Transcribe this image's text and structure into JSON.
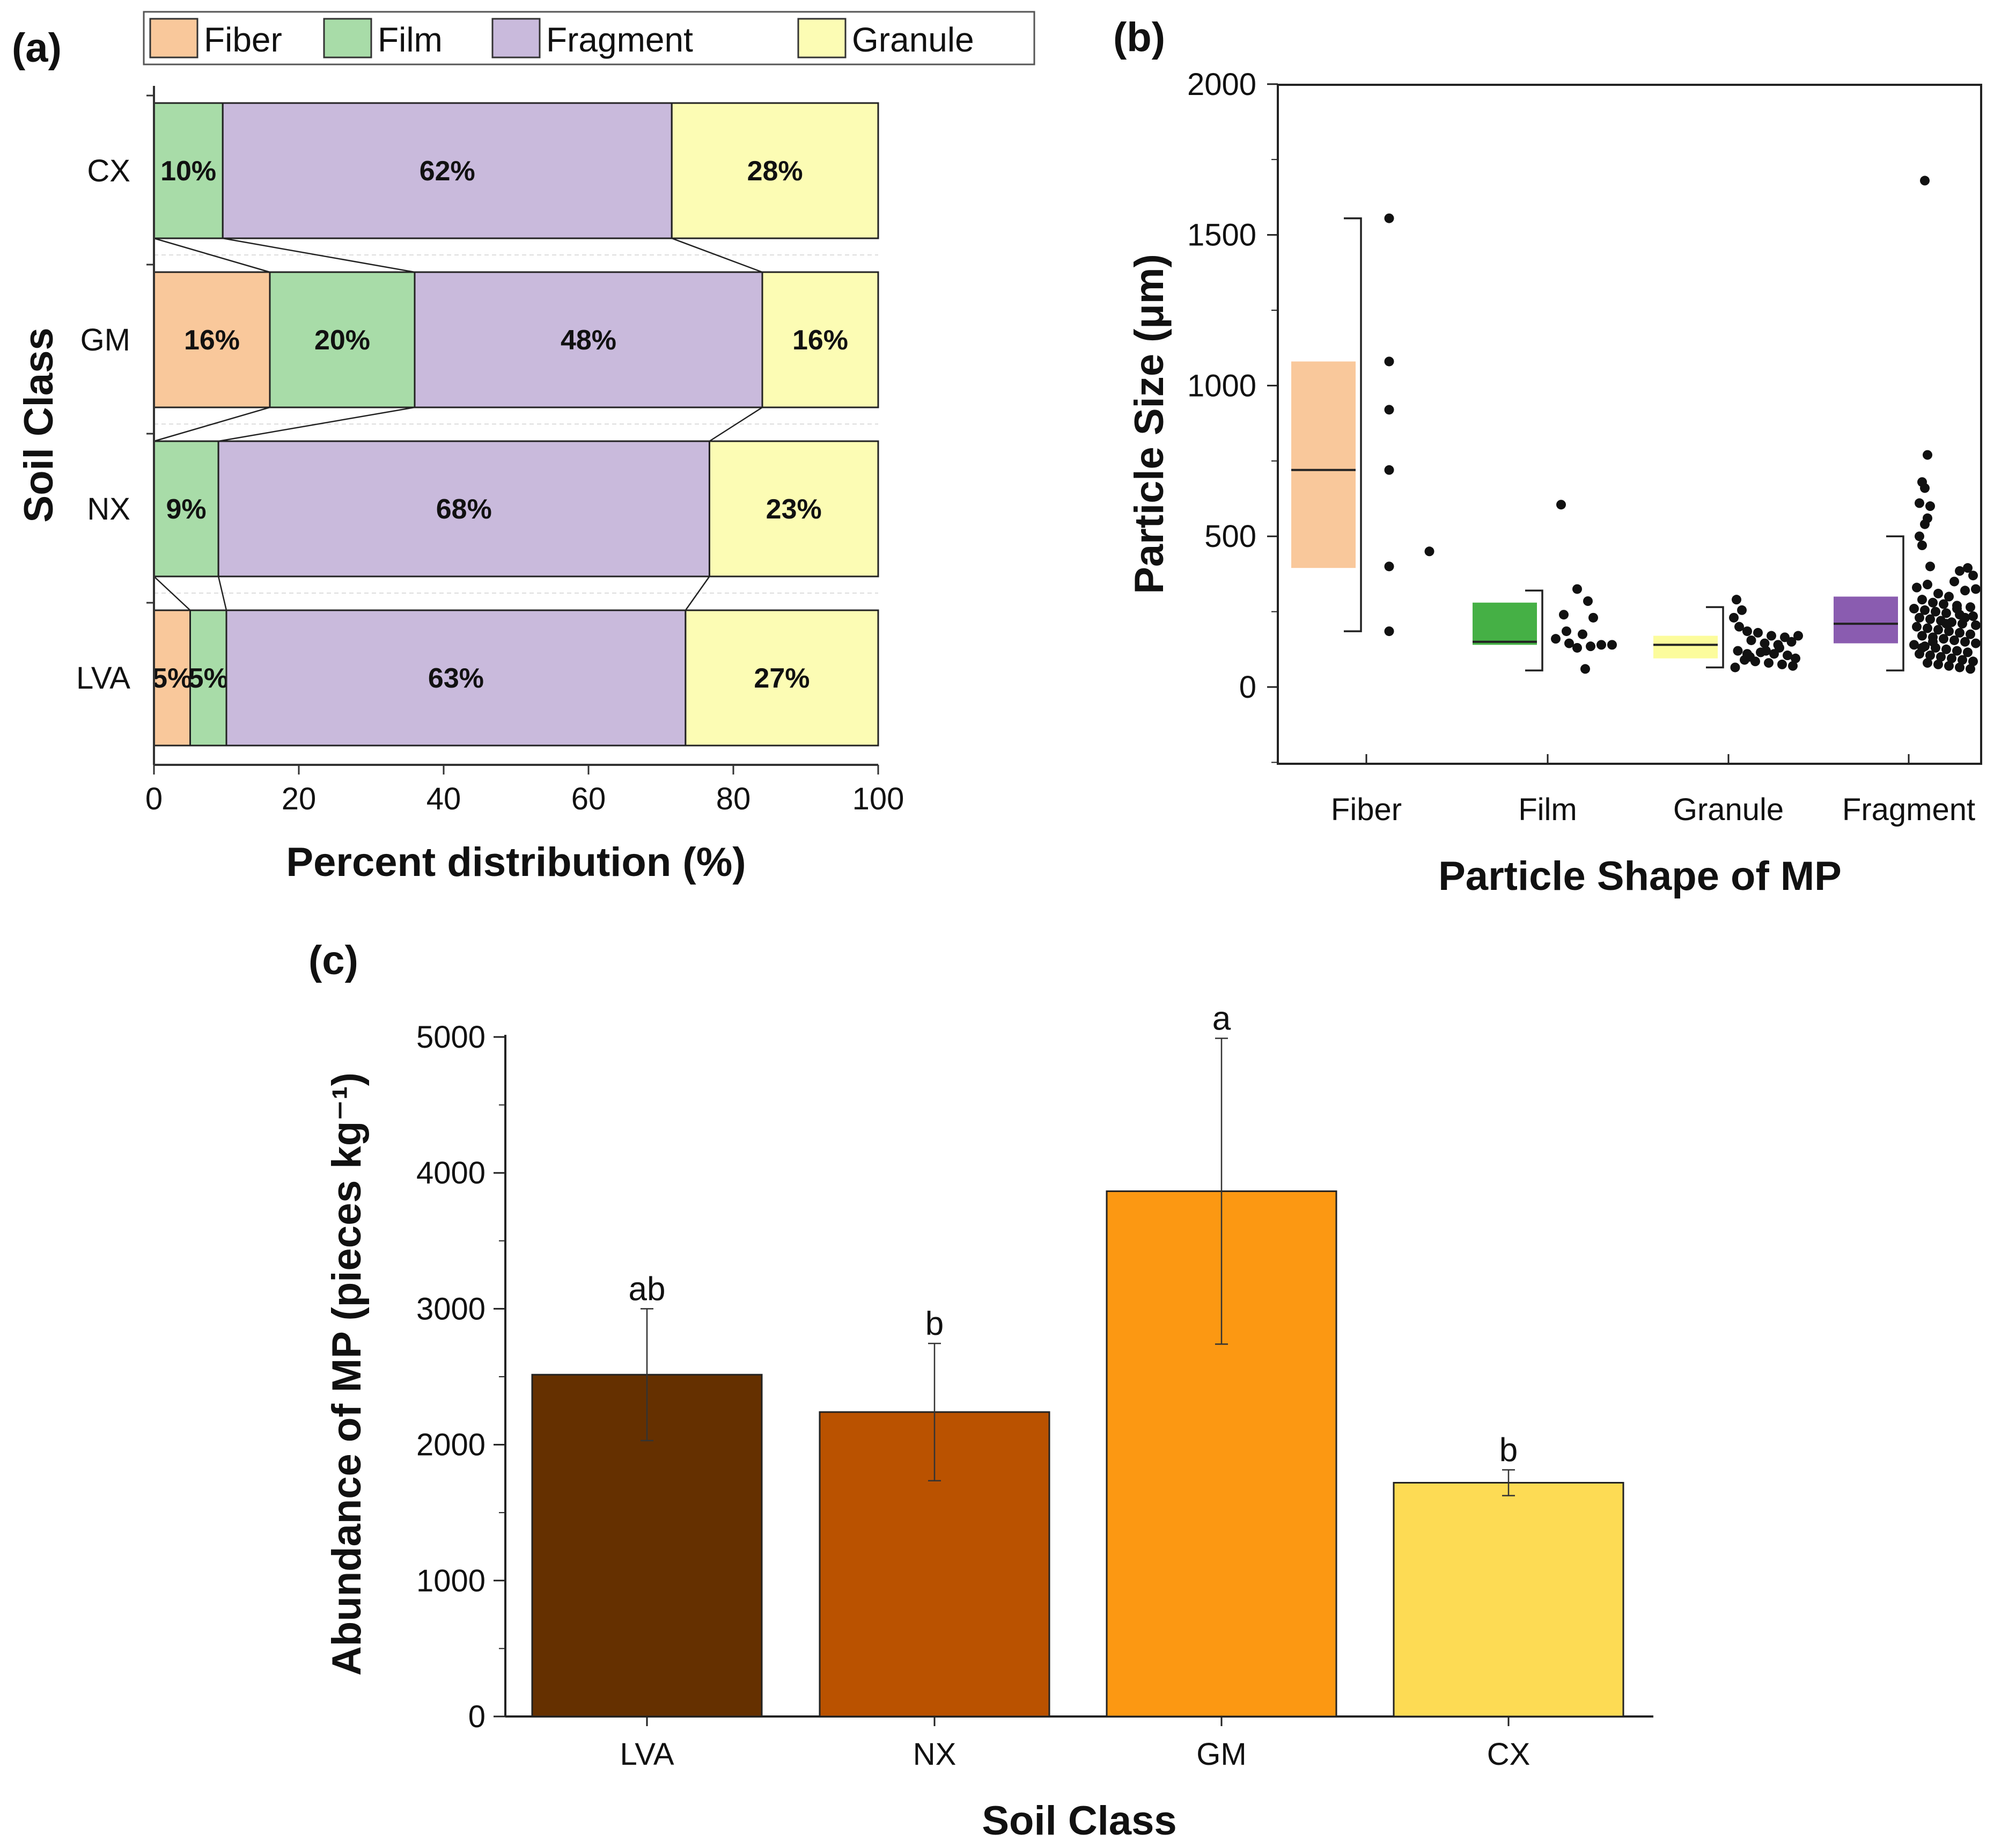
{
  "panel_a": {
    "label": "(a)",
    "chart_data": {
      "type": "stacked-bar-horizontal",
      "title": "",
      "xlabel": "Percent distribution (%)",
      "ylabel": "Soil Class",
      "xlim": [
        0,
        100
      ],
      "xticks": [
        "0",
        "20",
        "40",
        "60",
        "80",
        "100"
      ],
      "categories": [
        "CX",
        "GM",
        "NX",
        "LVA"
      ],
      "series": [
        {
          "name": "Fiber",
          "color": "#F9C89B",
          "values": [
            0,
            16,
            0,
            5
          ],
          "labels": [
            "",
            "16%",
            "",
            "5%"
          ]
        },
        {
          "name": "Film",
          "color": "#A8DCA8",
          "values": [
            9.5,
            20,
            8.9,
            5
          ],
          "labels": [
            "10%",
            "20%",
            "9%",
            "5%"
          ]
        },
        {
          "name": "Fragment",
          "color": "#C9BADC",
          "values": [
            62,
            48,
            67.8,
            63.4
          ],
          "labels": [
            "62%",
            "48%",
            "68%",
            "63%"
          ]
        },
        {
          "name": "Granule",
          "color": "#FCFCB4",
          "values": [
            28.5,
            16,
            23.3,
            26.6
          ],
          "labels": [
            "28%",
            "16%",
            "23%",
            "27%"
          ]
        }
      ],
      "legend_position": "top"
    }
  },
  "panel_b": {
    "label": "(b)",
    "chart_data": {
      "type": "box-scatter",
      "xlabel": "Particle Shape of MP",
      "ylabel": "Particle Size (μm)",
      "ylim": [
        -250,
        2000
      ],
      "yticks": [
        "0",
        "500",
        "1000",
        "1500",
        "2000"
      ],
      "categories": [
        {
          "name": "Fiber",
          "color": "#F9C89B",
          "q1": 395,
          "median": 720,
          "q3": 1080,
          "whisker_low": 185,
          "whisker_high": 1555,
          "points": [
            [
              0.15,
              1555
            ],
            [
              0.15,
              1080
            ],
            [
              0.15,
              920
            ],
            [
              0.15,
              720
            ],
            [
              0.15,
              400
            ],
            [
              0.15,
              185
            ],
            [
              0.45,
              450
            ]
          ]
        },
        {
          "name": "Film",
          "color": "#45B045",
          "q1": 140,
          "median": 150,
          "q3": 280,
          "whisker_low": 55,
          "whisker_high": 320,
          "points": [
            [
              0.08,
              605
            ],
            [
              0.2,
              325
            ],
            [
              0.28,
              285
            ],
            [
              0.1,
              240
            ],
            [
              0.32,
              230
            ],
            [
              0.12,
              185
            ],
            [
              0.24,
              175
            ],
            [
              0.04,
              160
            ],
            [
              0.14,
              145
            ],
            [
              0.3,
              135
            ],
            [
              0.2,
              130
            ],
            [
              0.38,
              140
            ],
            [
              0.46,
              140
            ],
            [
              0.26,
              60
            ]
          ]
        },
        {
          "name": "Granule",
          "color": "#FCFC9C",
          "q1": 95,
          "median": 140,
          "q3": 170,
          "whisker_low": 65,
          "whisker_high": 265,
          "points": [
            [
              0.04,
              290
            ],
            [
              0.08,
              255
            ],
            [
              0.02,
              230
            ],
            [
              0.06,
              200
            ],
            [
              0.12,
              185
            ],
            [
              0.2,
              180
            ],
            [
              0.3,
              170
            ],
            [
              0.4,
              165
            ],
            [
              0.5,
              170
            ],
            [
              0.15,
              155
            ],
            [
              0.25,
              145
            ],
            [
              0.35,
              140
            ],
            [
              0.45,
              150
            ],
            [
              0.05,
              120
            ],
            [
              0.12,
              110
            ],
            [
              0.22,
              115
            ],
            [
              0.32,
              110
            ],
            [
              0.42,
              105
            ],
            [
              0.48,
              95
            ],
            [
              0.1,
              90
            ],
            [
              0.18,
              85
            ],
            [
              0.28,
              80
            ],
            [
              0.38,
              75
            ],
            [
              0.46,
              70
            ],
            [
              0.03,
              65
            ],
            [
              0.14,
              100
            ],
            [
              0.36,
              130
            ],
            [
              0.26,
              120
            ]
          ]
        },
        {
          "name": "Fragment",
          "color": "#8A5CB0",
          "q1": 145,
          "median": 210,
          "q3": 300,
          "whisker_low": 55,
          "whisker_high": 500,
          "points": [
            [
              0.1,
              1680
            ],
            [
              0.12,
              770
            ],
            [
              0.08,
              680
            ],
            [
              0.1,
              660
            ],
            [
              0.06,
              610
            ],
            [
              0.14,
              600
            ],
            [
              0.12,
              560
            ],
            [
              0.1,
              540
            ],
            [
              0.06,
              500
            ],
            [
              0.08,
              470
            ],
            [
              0.14,
              400
            ],
            [
              0.42,
              395
            ],
            [
              0.36,
              385
            ],
            [
              0.46,
              370
            ],
            [
              0.32,
              350
            ],
            [
              0.12,
              340
            ],
            [
              0.04,
              330
            ],
            [
              0.48,
              325
            ],
            [
              0.4,
              320
            ],
            [
              0.2,
              310
            ],
            [
              0.28,
              300
            ],
            [
              0.08,
              290
            ],
            [
              0.16,
              280
            ],
            [
              0.24,
              275
            ],
            [
              0.34,
              270
            ],
            [
              0.44,
              265
            ],
            [
              0.02,
              260
            ],
            [
              0.1,
              255
            ],
            [
              0.18,
              250
            ],
            [
              0.26,
              245
            ],
            [
              0.36,
              240
            ],
            [
              0.46,
              235
            ],
            [
              0.06,
              230
            ],
            [
              0.14,
              225
            ],
            [
              0.22,
              220
            ],
            [
              0.3,
              215
            ],
            [
              0.38,
              210
            ],
            [
              0.48,
              205
            ],
            [
              0.04,
              200
            ],
            [
              0.12,
              195
            ],
            [
              0.2,
              190
            ],
            [
              0.28,
              185
            ],
            [
              0.36,
              180
            ],
            [
              0.44,
              175
            ],
            [
              0.08,
              170
            ],
            [
              0.16,
              165
            ],
            [
              0.24,
              160
            ],
            [
              0.32,
              155
            ],
            [
              0.4,
              150
            ],
            [
              0.48,
              145
            ],
            [
              0.02,
              140
            ],
            [
              0.1,
              135
            ],
            [
              0.18,
              130
            ],
            [
              0.26,
              125
            ],
            [
              0.34,
              120
            ],
            [
              0.42,
              115
            ],
            [
              0.06,
              110
            ],
            [
              0.14,
              105
            ],
            [
              0.22,
              100
            ],
            [
              0.3,
              95
            ],
            [
              0.38,
              90
            ],
            [
              0.46,
              85
            ],
            [
              0.12,
              80
            ],
            [
              0.2,
              75
            ],
            [
              0.28,
              70
            ],
            [
              0.36,
              65
            ],
            [
              0.44,
              60
            ],
            [
              0.16,
              150
            ],
            [
              0.26,
              210
            ],
            [
              0.4,
              230
            ],
            [
              0.08,
              130
            ],
            [
              0.34,
              260
            ]
          ]
        }
      ]
    }
  },
  "panel_c": {
    "label": "(c)",
    "chart_data": {
      "type": "bar",
      "xlabel": "Soil Class",
      "ylabel": "Abundance of MP (pieces kg⁻¹)",
      "ylim": [
        0,
        5000
      ],
      "yticks": [
        "0",
        "1000",
        "2000",
        "3000",
        "4000",
        "5000"
      ],
      "categories": [
        "LVA",
        "NX",
        "GM",
        "CX"
      ],
      "values": [
        2515,
        2240,
        3865,
        1720
      ],
      "errors": [
        485,
        505,
        1125,
        95
      ],
      "colors": [
        "#653000",
        "#BA5200",
        "#FC9812",
        "#FDDB54"
      ],
      "significance": [
        "ab",
        "b",
        "a",
        "b"
      ]
    }
  }
}
